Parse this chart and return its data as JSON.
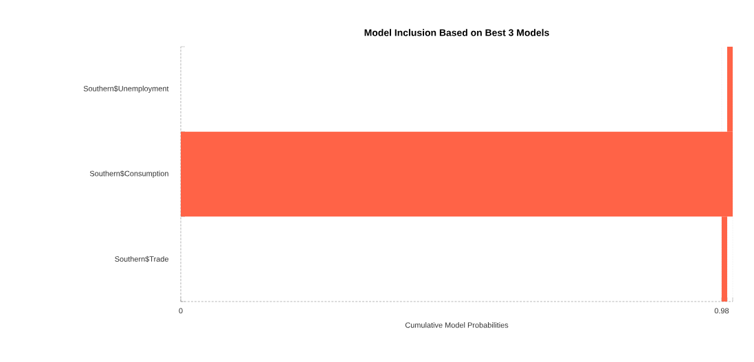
{
  "chart_data": {
    "type": "bar",
    "orientation": "horizontal",
    "title": "Model Inclusion Based on Best  3  Models",
    "xlabel": "Cumulative Model Probabilities",
    "categories": [
      "Southern$Unemployment",
      "Southern$Consumption",
      "Southern$Trade"
    ],
    "values": [
      0.01,
      1.0,
      0.01
    ],
    "base": [
      0.99,
      0,
      0.98
    ],
    "color": "#ff6347",
    "xlim": [
      0,
      1
    ],
    "xticks": [
      0,
      0.98,
      {
        "value": 0.99,
        "label": null
      },
      {
        "value": 1,
        "label": null
      }
    ],
    "grid": "x"
  }
}
